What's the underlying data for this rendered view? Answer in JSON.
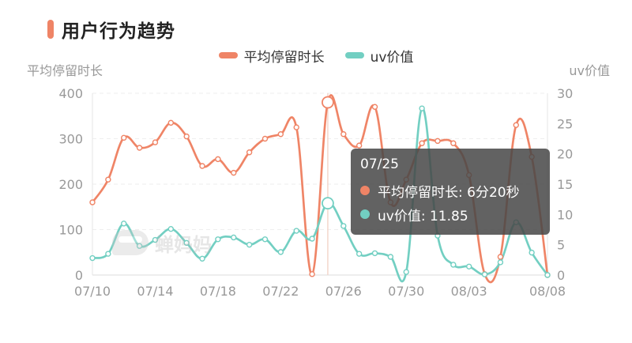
{
  "title": "用户行为趋势",
  "colors": {
    "series1": "#EF8466",
    "series2": "#72CFC2",
    "title_marker": "#EF8466"
  },
  "legend": [
    {
      "label": "平均停留时长",
      "color": "#EF8466"
    },
    {
      "label": "uv价值",
      "color": "#72CFC2"
    }
  ],
  "watermark": "蝉妈妈",
  "tooltip": {
    "date": "07/25",
    "rows": [
      {
        "label": "平均停留时长: 6分20秒",
        "color": "#EF8466"
      },
      {
        "label": "uv价值: 11.85",
        "color": "#72CFC2"
      }
    ]
  },
  "chart_data": {
    "type": "line",
    "ylabel": "平均停留时长",
    "ylabel_right": "uv价值",
    "ylim": [
      0,
      400
    ],
    "ylim_right": [
      0,
      30
    ],
    "yticks": [
      "0",
      "100",
      "200",
      "300",
      "400"
    ],
    "yticks_right": [
      "0",
      "5",
      "10",
      "15",
      "20",
      "25",
      "30"
    ],
    "x_tick_labels": [
      "07/10",
      "07/14",
      "07/18",
      "07/22",
      "07/26",
      "07/30",
      "08/03",
      "08/08"
    ],
    "x": [
      "07/10",
      "07/11",
      "07/12",
      "07/13",
      "07/14",
      "07/15",
      "07/16",
      "07/17",
      "07/18",
      "07/19",
      "07/20",
      "07/21",
      "07/22",
      "07/23",
      "07/24",
      "07/25",
      "07/26",
      "07/27",
      "07/28",
      "07/29",
      "07/30",
      "07/31",
      "08/01",
      "08/02",
      "08/03",
      "08/04",
      "08/05",
      "08/06",
      "08/07",
      "08/08"
    ],
    "series": [
      {
        "name": "平均停留时长",
        "axis": "left",
        "values": [
          160,
          210,
          302,
          280,
          292,
          335,
          305,
          240,
          255,
          225,
          270,
          300,
          310,
          325,
          2,
          380,
          310,
          285,
          370,
          160,
          210,
          290,
          295,
          290,
          220,
          2,
          40,
          330,
          260,
          0
        ]
      },
      {
        "name": "uv价值",
        "axis": "right",
        "values": [
          2.8,
          3.5,
          8.5,
          4.8,
          5.8,
          7.6,
          5.3,
          2.7,
          5.9,
          6.2,
          5.0,
          5.9,
          3.8,
          7.3,
          6.0,
          11.85,
          8.1,
          3.5,
          3.6,
          3.0,
          0.5,
          27.5,
          6.5,
          1.7,
          1.4,
          0.1,
          2.1,
          8.7,
          3.7,
          0.0
        ]
      }
    ],
    "highlight_x": "07/25",
    "grid": true
  }
}
